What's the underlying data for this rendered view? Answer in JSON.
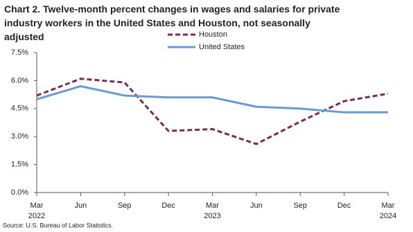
{
  "chart_data": {
    "type": "line",
    "title": "Chart 2. Twelve-month percent changes in wages and salaries for private industry workers in the United States and Houston, not seasonally adjusted",
    "categories": [
      "Mar",
      "Jun",
      "Sep",
      "Dec",
      "Mar",
      "Jun",
      "Sep",
      "Dec",
      "Mar"
    ],
    "category_years": [
      "2022",
      null,
      null,
      null,
      "2023",
      null,
      null,
      null,
      "2024"
    ],
    "series": [
      {
        "name": "Houston",
        "color": "#7b2c4a",
        "dashed": true,
        "values": [
          5.2,
          6.1,
          5.9,
          3.3,
          3.4,
          2.6,
          3.8,
          4.9,
          5.3
        ]
      },
      {
        "name": "United States",
        "color": "#6a99d6",
        "dashed": false,
        "values": [
          5.0,
          5.7,
          5.2,
          5.1,
          5.1,
          4.6,
          4.5,
          4.3,
          4.3
        ]
      }
    ],
    "ylim": [
      0,
      7.5
    ],
    "yticks": [
      {
        "value": 0,
        "label": "0.0%"
      },
      {
        "value": 1.5,
        "label": "1.5%"
      },
      {
        "value": 3,
        "label": "3.0%"
      },
      {
        "value": 4.5,
        "label": "4.5%"
      },
      {
        "value": 6,
        "label": "6.0%"
      },
      {
        "value": 7.5,
        "label": "7.5%"
      }
    ],
    "grid": false,
    "source": "Source: U.S. Bureau of Labor Statistics."
  }
}
